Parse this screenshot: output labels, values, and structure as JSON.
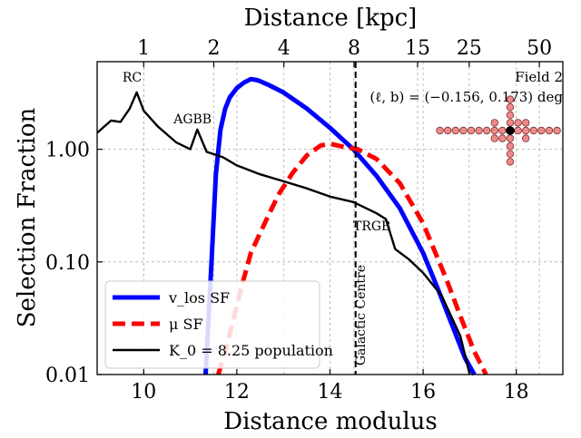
{
  "chart_data": {
    "type": "line",
    "xlabel": "Distance modulus",
    "ylabel": "Selection Fraction",
    "x2label": "Distance [kpc]",
    "xlim": [
      9.0,
      19.0
    ],
    "ylim": [
      0.01,
      6.0
    ],
    "yscale": "log",
    "grid": true,
    "legend_position": "lower-left",
    "x_ticks": [
      10,
      12,
      14,
      16,
      18
    ],
    "x_tick_labels": [
      "10",
      "12",
      "14",
      "16",
      "18"
    ],
    "y_ticks": [
      0.01,
      0.1,
      1.0
    ],
    "y_tick_labels": [
      "0.01",
      "0.10",
      "1.00"
    ],
    "top_ticks_kpc": [
      1,
      2,
      4,
      8,
      15,
      25,
      50
    ],
    "top_tick_labels": [
      "1",
      "2",
      "4",
      "8",
      "15",
      "25",
      "50"
    ],
    "galactic_centre_mu": 14.55,
    "series": [
      {
        "name": "v_los SF",
        "color": "#0000ff",
        "style": "solid",
        "x": [
          11.33,
          11.45,
          11.55,
          11.65,
          11.75,
          11.85,
          12.0,
          12.15,
          12.3,
          12.45,
          12.7,
          13.0,
          13.5,
          14.0,
          14.5,
          15.0,
          15.5,
          16.0,
          16.3,
          16.6,
          16.9,
          17.1
        ],
        "y": [
          0.01,
          0.09,
          0.6,
          1.5,
          2.3,
          2.9,
          3.5,
          3.9,
          4.2,
          4.1,
          3.7,
          3.2,
          2.3,
          1.55,
          1.0,
          0.58,
          0.3,
          0.12,
          0.06,
          0.029,
          0.014,
          0.01
        ]
      },
      {
        "name": "μ SF",
        "color": "#ff0000",
        "style": "dashed",
        "x": [
          11.6,
          11.75,
          11.9,
          12.1,
          12.3,
          12.5,
          12.7,
          12.9,
          13.2,
          13.5,
          13.8,
          14.0,
          14.3,
          14.6,
          15.0,
          15.5,
          16.0,
          16.5,
          16.8,
          17.1,
          17.35
        ],
        "y": [
          0.01,
          0.016,
          0.028,
          0.06,
          0.12,
          0.18,
          0.27,
          0.4,
          0.62,
          0.88,
          1.08,
          1.12,
          1.05,
          1.0,
          0.82,
          0.5,
          0.22,
          0.07,
          0.033,
          0.016,
          0.01
        ]
      },
      {
        "name": "K_0 = 8.25 population",
        "color": "#000000",
        "style": "solid",
        "x": [
          9.0,
          9.3,
          9.5,
          9.7,
          9.85,
          10.0,
          10.3,
          10.7,
          11.0,
          11.15,
          11.35,
          11.7,
          12.0,
          12.5,
          13.0,
          13.5,
          14.0,
          14.5,
          15.0,
          15.2,
          15.4,
          15.7,
          16.0,
          16.4,
          16.8,
          17.0
        ],
        "y": [
          1.4,
          1.8,
          1.75,
          2.3,
          3.2,
          2.2,
          1.6,
          1.15,
          1.0,
          1.5,
          0.95,
          0.85,
          0.72,
          0.6,
          0.52,
          0.45,
          0.38,
          0.34,
          0.27,
          0.24,
          0.13,
          0.105,
          0.08,
          0.05,
          0.022,
          0.01
        ]
      }
    ],
    "annotations": [
      {
        "text": "RC",
        "x": 9.75,
        "y": 4.0
      },
      {
        "text": "AGBB",
        "x": 11.05,
        "y": 1.7
      },
      {
        "text": "TRGB",
        "x": 14.9,
        "y": 0.19
      },
      {
        "text": "Galactic Centre",
        "x": 14.75,
        "y": 0.012,
        "rotate": -90
      }
    ],
    "field_label": "Field 2",
    "coord_label": "(ℓ, b) = (−0.156, 0.173) deg",
    "legend": [
      {
        "label": "v_los SF",
        "color": "#0000ff",
        "style": "solid"
      },
      {
        "label": "μ SF",
        "color": "#ff0000",
        "style": "dashed"
      },
      {
        "label": "K_0 = 8.25 population",
        "color": "#000000",
        "style": "solid"
      }
    ]
  }
}
